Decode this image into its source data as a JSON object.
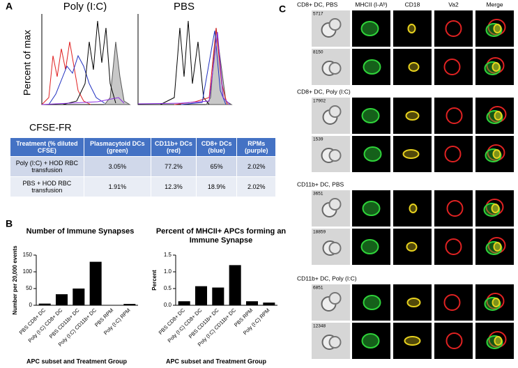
{
  "panel_a": {
    "label": "A",
    "histograms": [
      {
        "title": "Poly (I:C)"
      },
      {
        "title": "PBS"
      }
    ],
    "y_label": "Percent of max",
    "x_label": "CFSE-FR",
    "table": {
      "header": [
        "Treatment (% diluted CFSE)",
        "Plasmacytoid DCs (green)",
        "CD11b+ DCs (red)",
        "CD8+ DCs (blue)",
        "RPMs (purple)"
      ],
      "rows": [
        [
          "Poly (I:C) + HOD RBC transfusion",
          "3.05%",
          "77.2%",
          "65%",
          "2.02%"
        ],
        [
          "PBS + HOD RBC transfusion",
          "1.91%",
          "12.3%",
          "18.9%",
          "2.02%"
        ]
      ]
    }
  },
  "panel_b": {
    "label": "B",
    "charts": [
      {
        "type": "bar",
        "title": "Number of Immune Synapses",
        "y_label": "Number per 20,000 events",
        "x_label": "APC subset and Treatment Group",
        "categories": [
          "PBS CD8+ DC",
          "Poly (I:C) CD8+ DC",
          "PBS CD11b+ DC",
          "Poly (I:C) CD11b+ DC",
          "PBS RPM",
          "Poly (I:C) RPM"
        ],
        "values": [
          5,
          33,
          50,
          130,
          1,
          4
        ],
        "color": "#000000",
        "ylim": [
          0,
          150
        ],
        "yticks": [
          0,
          50,
          100,
          150
        ]
      },
      {
        "type": "bar",
        "title": "Percent of MHCII+ APCs forming an Immune Synapse",
        "y_label": "Percent",
        "x_label": "APC subset and Treatment Group",
        "categories": [
          "PBS CD8+ DC",
          "Poly (I:C) CD8+ DC",
          "PBS CD11b+ DC",
          "Poly (I:C) CD11b+ DC",
          "PBS RPM",
          "Poly (I:C) RPM"
        ],
        "values": [
          0.12,
          0.57,
          0.53,
          1.2,
          0.12,
          0.08
        ],
        "color": "#000000",
        "ylim": [
          0,
          1.5
        ],
        "yticks": [
          {
            "value": 0,
            "label": "0.0"
          },
          {
            "value": 0.5,
            "label": "0.5"
          },
          {
            "value": 1,
            "label": "1.0"
          },
          {
            "value": 1.5,
            "label": "1.5"
          }
        ]
      }
    ]
  },
  "panel_c": {
    "label": "C",
    "columns": [
      "MHCII (I-Aᵇ)",
      "CD18",
      "Va2",
      "Merge"
    ],
    "sections": [
      {
        "title": "CD8+ DC, PBS",
        "rows": [
          "5717",
          "8150"
        ]
      },
      {
        "title": "CD8+ DC, Poly (I:C)",
        "rows": [
          "17902",
          "1539"
        ]
      },
      {
        "title": "CD11b+ DC, PBS",
        "rows": [
          "3651",
          "18859"
        ]
      },
      {
        "title": "CD11b+ DC, Poly (I:C)",
        "rows": [
          "6851",
          "12348"
        ]
      }
    ]
  }
}
